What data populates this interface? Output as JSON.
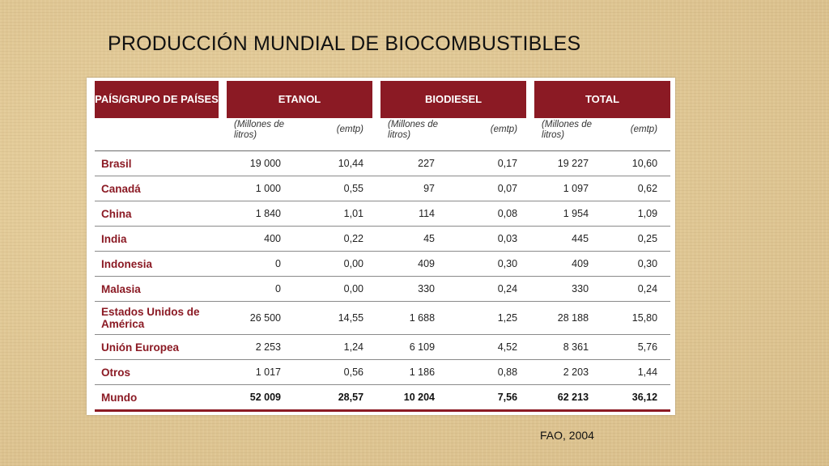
{
  "title": "PRODUCCIÓN MUNDIAL DE BIOCOMBUSTIBLES",
  "source": "FAO, 2004",
  "table": {
    "header": {
      "country": "PAÍS/GRUPO DE PAÍSES",
      "groups": [
        "ETANOL",
        "BIODIESEL",
        "TOTAL"
      ],
      "unit_volume": "(Millones de litros)",
      "unit_share": "(emtp)"
    },
    "rows": [
      {
        "country": "Brasil",
        "values": [
          "19 000",
          "10,44",
          "227",
          "0,17",
          "19 227",
          "10,60"
        ]
      },
      {
        "country": "Canadá",
        "values": [
          "1 000",
          "0,55",
          "97",
          "0,07",
          "1 097",
          "0,62"
        ]
      },
      {
        "country": "China",
        "values": [
          "1 840",
          "1,01",
          "114",
          "0,08",
          "1 954",
          "1,09"
        ]
      },
      {
        "country": "India",
        "values": [
          "400",
          "0,22",
          "45",
          "0,03",
          "445",
          "0,25"
        ]
      },
      {
        "country": "Indonesia",
        "values": [
          "0",
          "0,00",
          "409",
          "0,30",
          "409",
          "0,30"
        ]
      },
      {
        "country": "Malasia",
        "values": [
          "0",
          "0,00",
          "330",
          "0,24",
          "330",
          "0,24"
        ]
      },
      {
        "country": "Estados Unidos de América",
        "values": [
          "26 500",
          "14,55",
          "1 688",
          "1,25",
          "28 188",
          "15,80"
        ]
      },
      {
        "country": "Unión Europea",
        "values": [
          "2 253",
          "1,24",
          "6 109",
          "4,52",
          "8 361",
          "5,76"
        ]
      },
      {
        "country": "Otros",
        "values": [
          "1 017",
          "0,56",
          "1 186",
          "0,88",
          "2 203",
          "1,44"
        ]
      },
      {
        "country": "Mundo",
        "values": [
          "52 009",
          "28,57",
          "10 204",
          "7,56",
          "62 213",
          "36,12"
        ]
      }
    ]
  }
}
